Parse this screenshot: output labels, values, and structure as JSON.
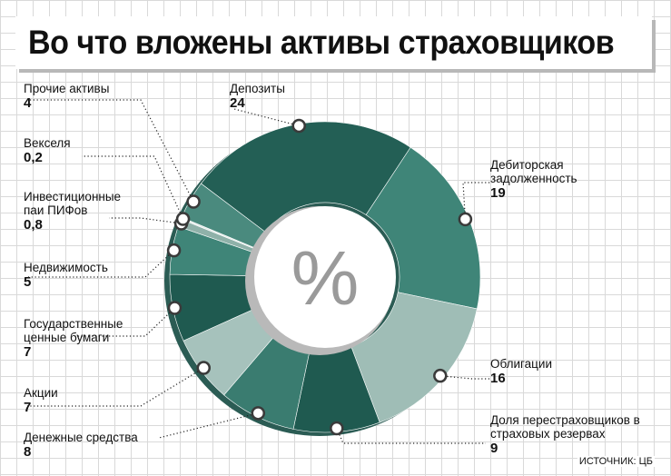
{
  "title": "Во что вложены активы страховщиков",
  "source": "ИСТОЧНИК: ЦБ",
  "center_symbol": "%",
  "chart_data": {
    "type": "pie",
    "variant": "donut",
    "title": "Во что вложены активы страховщиков",
    "unit": "%",
    "slices": [
      {
        "label": "Депозиты",
        "value": 24,
        "value_text": "24",
        "color": "#235f55"
      },
      {
        "label": "Дебиторская задолженность",
        "value": 19,
        "value_text": "19",
        "color": "#3f8578"
      },
      {
        "label": "Облигации",
        "value": 16,
        "value_text": "16",
        "color": "#9fbdb6"
      },
      {
        "label": "Доля перестраховщиков в страховых резервах",
        "value": 9,
        "value_text": "9",
        "color": "#1f5a50"
      },
      {
        "label": "Денежные средства",
        "value": 8,
        "value_text": "8",
        "color": "#3a7c70"
      },
      {
        "label": "Акции",
        "value": 7,
        "value_text": "7",
        "color": "#a6c2bc"
      },
      {
        "label": "Государственные ценные бумаги",
        "value": 7,
        "value_text": "7",
        "color": "#1f5a50"
      },
      {
        "label": "Недвижимость",
        "value": 5,
        "value_text": "5",
        "color": "#3f8578"
      },
      {
        "label": "Инвестиционные паи ПИФов",
        "value": 0.8,
        "value_text": "0,8",
        "color": "#8fb1a9"
      },
      {
        "label": "Векселя",
        "value": 0.2,
        "value_text": "0,2",
        "color": "#e5ecea"
      },
      {
        "label": "Прочие активы",
        "value": 4,
        "value_text": "4",
        "color": "#4a8a7e"
      }
    ]
  }
}
